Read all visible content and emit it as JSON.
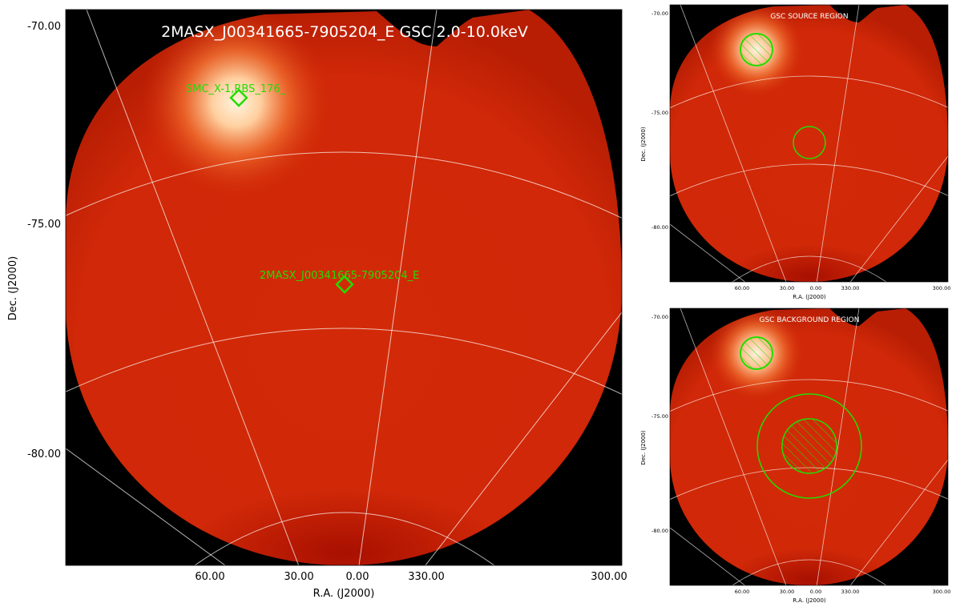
{
  "main": {
    "title": "2MASX_J00341665-7905204_E GSC 2.0-10.0keV",
    "xlabel": "R.A. (J2000)",
    "ylabel": "Dec. (J2000)",
    "dec_ticks": [
      "-70.00",
      "-75.00",
      "-80.00"
    ],
    "ra_ticks": [
      "60.00",
      "30.00",
      "0.00",
      "330.00",
      "300.00"
    ],
    "sources": [
      {
        "name": "SMC_X-1,RBS_176_"
      },
      {
        "name": "2MASX_J00341665-7905204_E"
      }
    ]
  },
  "source_panel": {
    "title": "GSC SOURCE REGION",
    "xlabel": "R.A. (J2000)",
    "ylabel": "Dec. (J2000)",
    "dec_ticks": [
      "-70.00",
      "-75.00",
      "-80.00"
    ],
    "ra_ticks": [
      "60.00",
      "30.00",
      "0.00",
      "330.00",
      "300.00"
    ]
  },
  "background_panel": {
    "title": "GSC BACKGROUND REGION",
    "xlabel": "R.A. (J2000)",
    "ylabel": "Dec. (J2000)",
    "dec_ticks": [
      "-70.00",
      "-75.00",
      "-80.00"
    ],
    "ra_ticks": [
      "60.00",
      "30.00",
      "0.00",
      "330.00",
      "300.00"
    ]
  },
  "colors": {
    "background": "#000000",
    "sky": "#d42a0a",
    "region": "#22dd00",
    "grid": "#ffffff"
  }
}
